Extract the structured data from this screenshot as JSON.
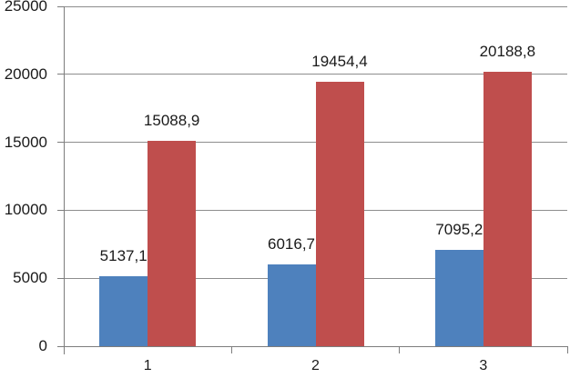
{
  "chart_data": {
    "type": "bar",
    "title": "",
    "xlabel": "",
    "ylabel": "",
    "categories": [
      "1",
      "2",
      "3"
    ],
    "series": [
      {
        "color": "#4E81BD",
        "values": [
          5137.1,
          6016.7,
          7095.2
        ],
        "labels": [
          "5137,1",
          "6016,7",
          "7095,2"
        ]
      },
      {
        "color": "#BF4E4D",
        "values": [
          15088.9,
          19454.4,
          20188.8
        ],
        "labels": [
          "15088,9",
          "19454,4",
          "20188,8"
        ]
      }
    ],
    "ylim": [
      0,
      25000
    ],
    "ytick_interval": 5000,
    "yticks": [
      {
        "value": 25000,
        "label": "25000"
      },
      {
        "value": 20000,
        "label": "20000"
      },
      {
        "value": 15000,
        "label": "15000"
      },
      {
        "value": 10000,
        "label": "10000"
      },
      {
        "value": 5000,
        "label": "5000"
      },
      {
        "value": 0,
        "label": "0"
      }
    ],
    "grid": true,
    "legend": "none",
    "decimal_separator": ","
  },
  "colors": {
    "background": "#FFFFFF",
    "gridline": "#8D8D8D",
    "axis": "#7D7D7D",
    "text": "#1A1A1A",
    "series1": "#4E81BD",
    "series2": "#BF4E4D"
  }
}
